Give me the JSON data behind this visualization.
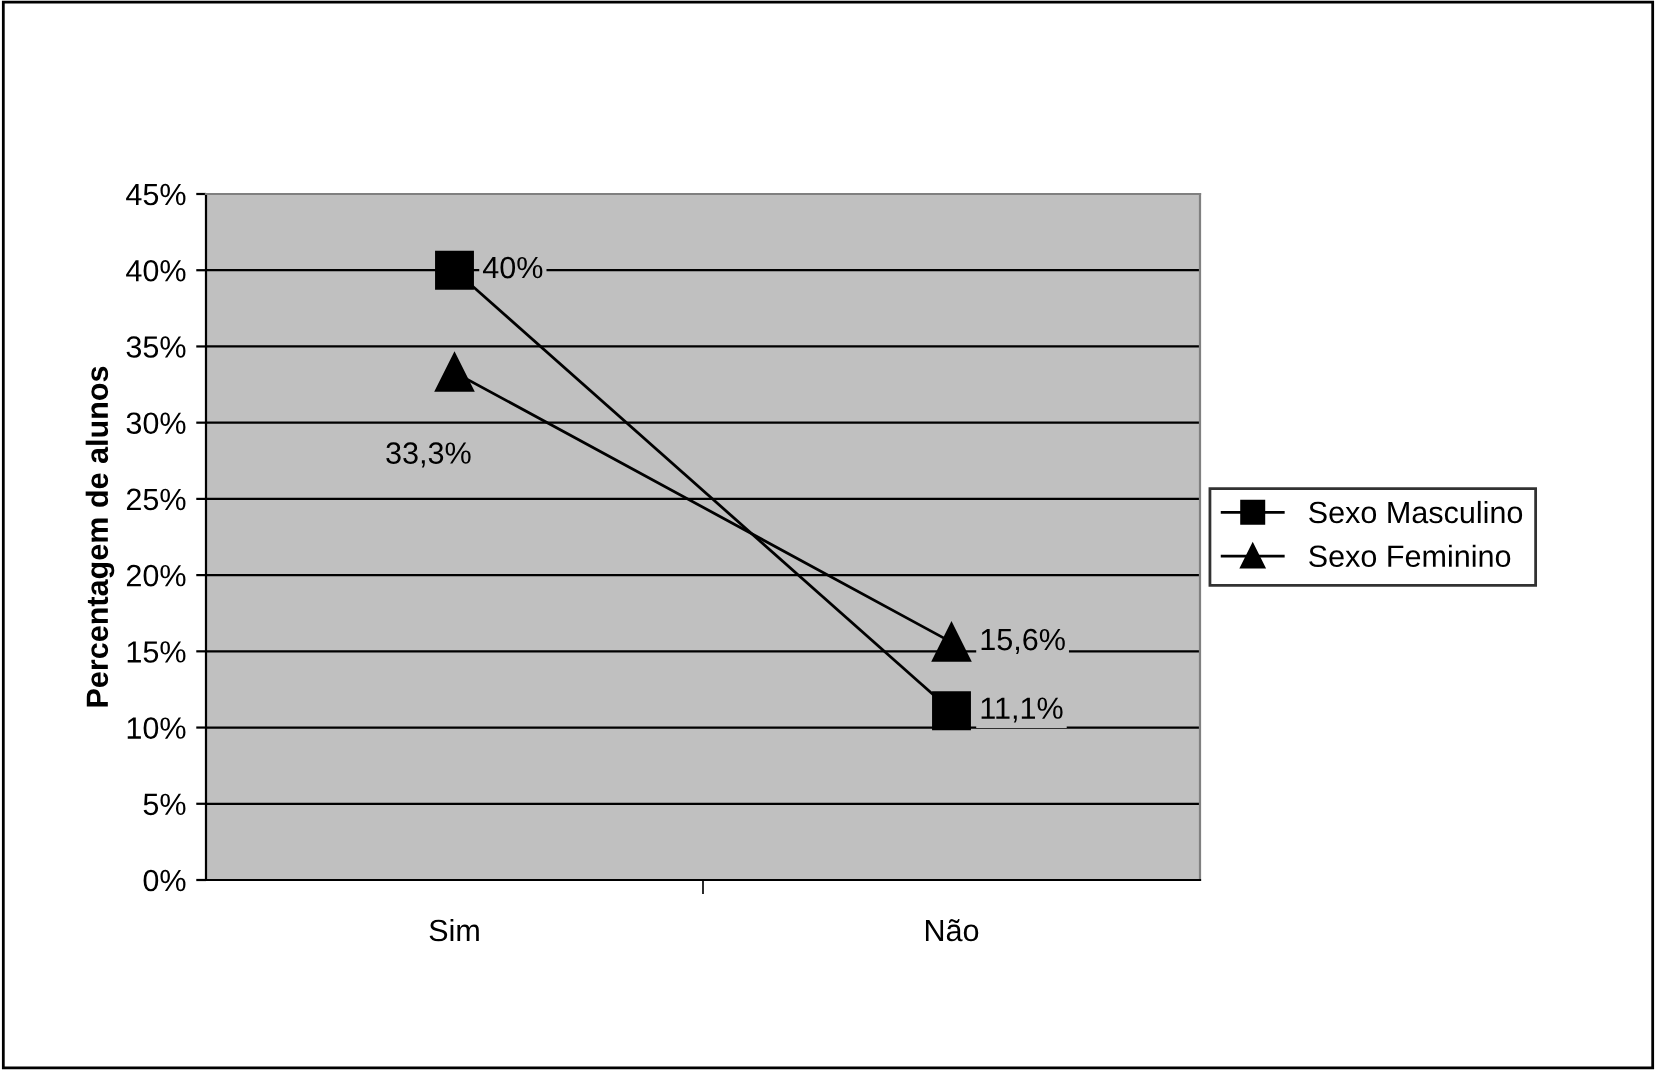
{
  "chart_data": {
    "type": "line",
    "ylabel": "Percentagem de alunos",
    "categories": [
      "Sim",
      "Não"
    ],
    "series": [
      {
        "name": "Sexo Masculino",
        "color": "#000000",
        "marker": "square",
        "values": [
          40,
          11.1
        ],
        "value_labels": [
          "40%",
          "11,1%"
        ]
      },
      {
        "name": "Sexo Feminino",
        "color": "#000000",
        "marker": "triangle",
        "values": [
          33.3,
          15.6
        ],
        "value_labels": [
          "33,3%",
          "15,6%"
        ]
      }
    ],
    "ylim": [
      0,
      45
    ],
    "yticks": [
      {
        "value": 0,
        "label": "0%"
      },
      {
        "value": 5,
        "label": "5%"
      },
      {
        "value": 10,
        "label": "10%"
      },
      {
        "value": 15,
        "label": "15%"
      },
      {
        "value": 20,
        "label": "20%"
      },
      {
        "value": 25,
        "label": "25%"
      },
      {
        "value": 30,
        "label": "30%"
      },
      {
        "value": 35,
        "label": "35%"
      },
      {
        "value": 40,
        "label": "40%"
      },
      {
        "value": 45,
        "label": "45%"
      }
    ],
    "grid": "y",
    "legend": "right",
    "line_style": "solid"
  }
}
